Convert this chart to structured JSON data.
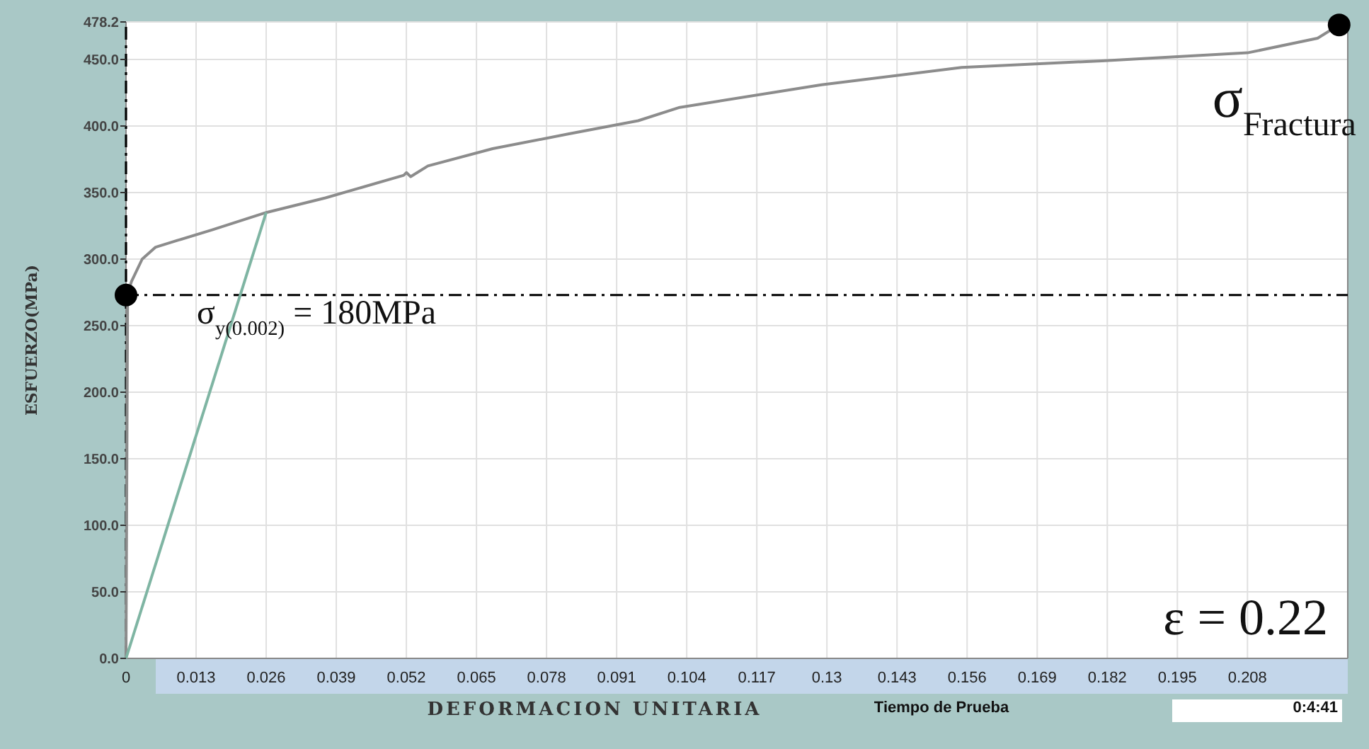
{
  "chart_data": {
    "type": "line",
    "xlabel": "DEFORMACION UNITARIA",
    "ylabel": "ESFUERZO(MPa)",
    "xlim": [
      0,
      0.2266
    ],
    "ylim": [
      0,
      478.2
    ],
    "xticks": [
      {
        "value": 0,
        "label": "0"
      },
      0.013,
      0.026,
      0.039,
      0.052,
      0.065,
      0.078,
      0.091,
      0.104,
      0.117,
      0.13,
      0.143,
      0.156,
      0.169,
      0.182,
      0.195,
      0.208
    ],
    "yticks": [
      {
        "value": 0,
        "label": "0.0"
      },
      {
        "value": 50,
        "label": "50.0"
      },
      {
        "value": 100,
        "label": "100.0"
      },
      {
        "value": 150,
        "label": "150.0"
      },
      {
        "value": 200,
        "label": "200.0"
      },
      {
        "value": 250,
        "label": "250.0"
      },
      {
        "value": 300,
        "label": "300.0"
      },
      {
        "value": 350,
        "label": "350.0"
      },
      {
        "value": 400,
        "label": "400.0"
      },
      {
        "value": 450,
        "label": "450.0"
      },
      478.2
    ],
    "grid": true,
    "series": [
      {
        "color": "#8c8c8c",
        "x": [
          0,
          0.0003,
          0.001,
          0.003,
          0.0055,
          0.0095,
          0.016,
          0.026,
          0.037,
          0.0515,
          0.052,
          0.0528,
          0.056,
          0.068,
          0.082,
          0.095,
          0.1027,
          0.129,
          0.155,
          0.181,
          0.208,
          0.221,
          0.225
        ],
        "values": [
          0,
          273,
          283,
          300,
          309,
          314,
          322,
          335,
          346,
          363,
          365,
          362,
          370,
          383,
          394,
          404,
          414,
          431,
          444,
          449,
          455,
          466,
          476
        ]
      },
      {
        "color": "#7fb5a3",
        "x": [
          0,
          0.026
        ],
        "values": [
          0,
          335
        ]
      },
      {
        "type": "scatter",
        "color": "#000000",
        "marker": "circle",
        "x": [
          0,
          0.225
        ],
        "values": [
          273,
          476
        ]
      }
    ],
    "ref_lines": [
      {
        "axis": "y",
        "value": 273,
        "color": "#000000",
        "line_style": "dashed"
      },
      {
        "axis": "x",
        "value": 0,
        "color": "#000000",
        "line_style": "dashed"
      }
    ],
    "annotations": [
      {
        "text": "σ$_{y(0.002)}$ = 180MPa",
        "x": 0,
        "y": 273
      },
      {
        "text": "σ$_{Fractura}$",
        "x": 0.225,
        "y": 476
      },
      "ε = 0.22",
      "Tiempo de Prueba",
      "0:4:41"
    ]
  }
}
